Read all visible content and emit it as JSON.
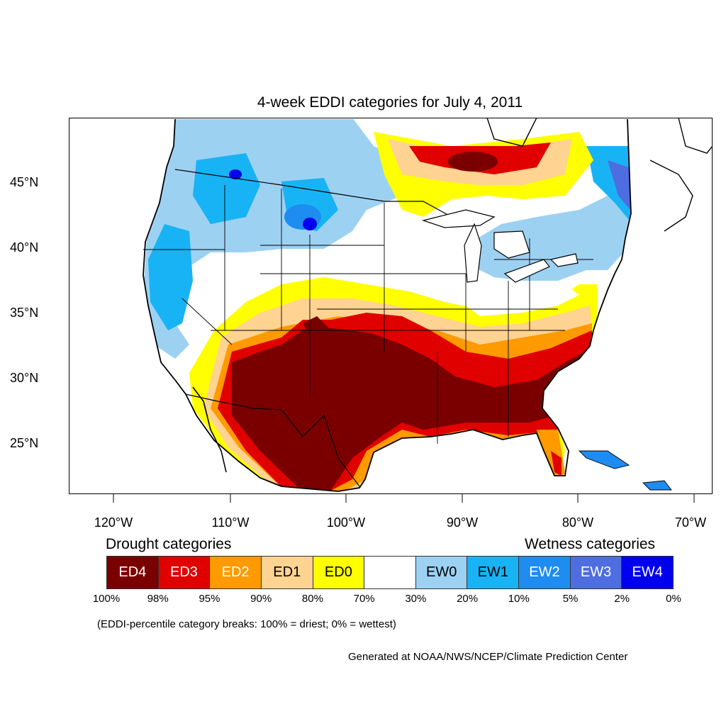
{
  "title": "4-week EDDI categories for July 4, 2011",
  "lat_labels": [
    "45°N",
    "40°N",
    "35°N",
    "30°N",
    "25°N"
  ],
  "lon_labels": [
    "120°W",
    "110°W",
    "100°W",
    "90°W",
    "80°W",
    "70°W"
  ],
  "drought_header": "Drought categories",
  "wetness_header": "Wetness categories",
  "legend": [
    {
      "label": "ED4",
      "color": "#7a0000",
      "text_color": "#ffffff"
    },
    {
      "label": "ED3",
      "color": "#e00000",
      "text_color": "#ffffff"
    },
    {
      "label": "ED2",
      "color": "#ff9a00",
      "text_color": "#ffffff"
    },
    {
      "label": "ED1",
      "color": "#ffd391",
      "text_color": "#000000"
    },
    {
      "label": "ED0",
      "color": "#ffff00",
      "text_color": "#000000"
    },
    {
      "label": "",
      "color": "#ffffff",
      "text_color": "#000000"
    },
    {
      "label": "EW0",
      "color": "#9dd1f2",
      "text_color": "#000000"
    },
    {
      "label": "EW1",
      "color": "#18b3f5",
      "text_color": "#000000"
    },
    {
      "label": "EW2",
      "color": "#1e8cf0",
      "text_color": "#ffffff"
    },
    {
      "label": "EW3",
      "color": "#4e6de0",
      "text_color": "#ffffff"
    },
    {
      "label": "EW4",
      "color": "#0000ee",
      "text_color": "#ffffff"
    }
  ],
  "breaks": [
    "100%",
    "98%",
    "95%",
    "90%",
    "80%",
    "70%",
    "30%",
    "20%",
    "10%",
    "5%",
    "2%",
    "0%"
  ],
  "note": "(EDDI-percentile category breaks: 100% = driest; 0% = wettest)",
  "credit": "Generated at NOAA/NWS/NCEP/Climate Prediction Center"
}
